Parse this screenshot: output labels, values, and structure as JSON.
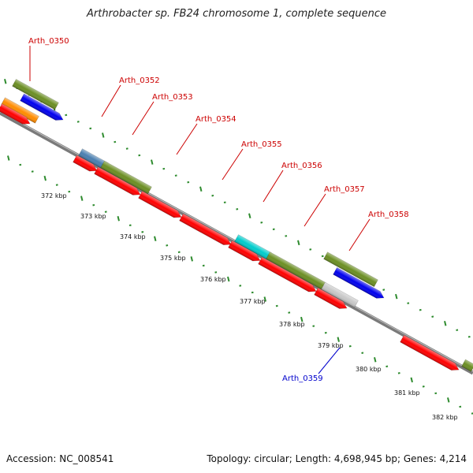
{
  "title": "Arthrobacter sp. FB24 chromosome 1, complete sequence",
  "footer": {
    "accession": "Accession: NC_008541",
    "summary": "Topology: circular; Length: 4,698,945 bp; Genes: 4,214"
  },
  "colors": {
    "red": "#ff0000",
    "orange": "#ff8c00",
    "blue": "#0000ee",
    "olive": "#6b8e23",
    "steel": "#4a7fb0",
    "cyan": "#00cccc",
    "grey": "#c8c8c8",
    "label_red": "#cc0000",
    "label_blue": "#0000cc",
    "tick_green": "#2e8b2e"
  },
  "gene_labels": [
    {
      "text": "Arth_0350",
      "color": "red"
    },
    {
      "text": "Arth_0352",
      "color": "red"
    },
    {
      "text": "Arth_0353",
      "color": "red"
    },
    {
      "text": "Arth_0354",
      "color": "red"
    },
    {
      "text": "Arth_0355",
      "color": "red"
    },
    {
      "text": "Arth_0356",
      "color": "red"
    },
    {
      "text": "Arth_0357",
      "color": "red"
    },
    {
      "text": "Arth_0358",
      "color": "red"
    },
    {
      "text": "Arth_0359",
      "color": "blue"
    }
  ],
  "tick_labels": [
    "372 kbp",
    "373 kbp",
    "374 kbp",
    "375 kbp",
    "376 kbp",
    "377 kbp",
    "378 kbp",
    "379 kbp",
    "380 kbp",
    "381 kbp",
    "382 kbp"
  ],
  "features": [
    {
      "color": "orange",
      "strand": "outer",
      "arrow": false
    },
    {
      "color": "red",
      "strand": "cds",
      "arrow": true
    },
    {
      "color": "steel",
      "strand": "outer",
      "arrow": false
    },
    {
      "color": "olive",
      "strand": "outer",
      "arrow": false
    },
    {
      "color": "red",
      "strand": "cds",
      "arrow": true
    },
    {
      "color": "red",
      "strand": "cds",
      "arrow": true
    },
    {
      "color": "red",
      "strand": "cds",
      "arrow": true
    },
    {
      "color": "red",
      "strand": "cds",
      "arrow": true
    },
    {
      "color": "cyan",
      "strand": "outer",
      "arrow": false
    },
    {
      "color": "olive",
      "strand": "outer",
      "arrow": false
    },
    {
      "color": "red",
      "strand": "cds",
      "arrow": true
    },
    {
      "color": "red",
      "strand": "cds",
      "arrow": true
    },
    {
      "color": "red",
      "strand": "cds",
      "arrow": true
    },
    {
      "color": "grey",
      "strand": "outer",
      "arrow": false
    },
    {
      "color": "red",
      "strand": "cds",
      "arrow": true
    },
    {
      "color": "olive",
      "strand": "outer",
      "arrow": false
    },
    {
      "color": "blue",
      "strand": "inner",
      "arrow": true
    },
    {
      "color": "olive",
      "strand": "inner",
      "arrow": false
    },
    {
      "color": "blue",
      "strand": "inner",
      "arrow": true
    },
    {
      "color": "olive",
      "strand": "inner",
      "arrow": false
    }
  ]
}
